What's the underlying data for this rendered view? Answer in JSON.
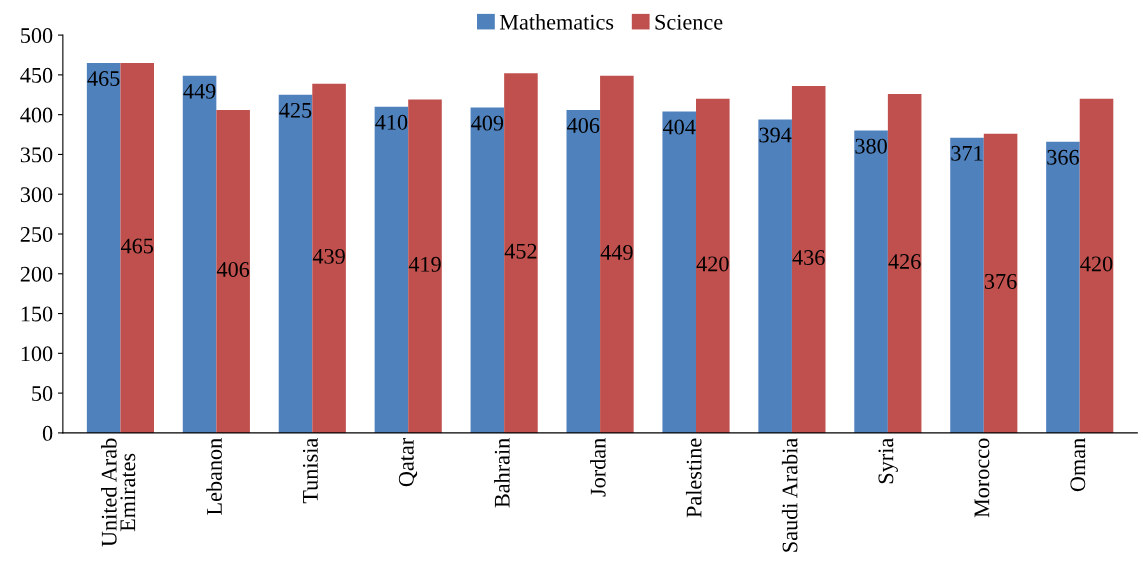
{
  "chart_data": {
    "type": "bar",
    "categories": [
      "United Arab Emirates",
      "Lebanon",
      "Tunisia",
      "Qatar",
      "Bahrain",
      "Jordan",
      "Palestine",
      "Saudi Arabia",
      "Syria",
      "Morocco",
      "Oman"
    ],
    "series": [
      {
        "name": "Mathematics",
        "color": "#4f81bd",
        "values": [
          465,
          449,
          425,
          410,
          409,
          406,
          404,
          394,
          380,
          371,
          366
        ]
      },
      {
        "name": "Science",
        "color": "#c0504d",
        "values": [
          465,
          406,
          439,
          419,
          452,
          449,
          420,
          436,
          426,
          376,
          420
        ]
      }
    ],
    "ylim": [
      0,
      500
    ],
    "yticks": [
      0,
      50,
      100,
      150,
      200,
      250,
      300,
      350,
      400,
      450,
      500
    ],
    "data_labels": true,
    "legend": "top",
    "grid": false
  }
}
